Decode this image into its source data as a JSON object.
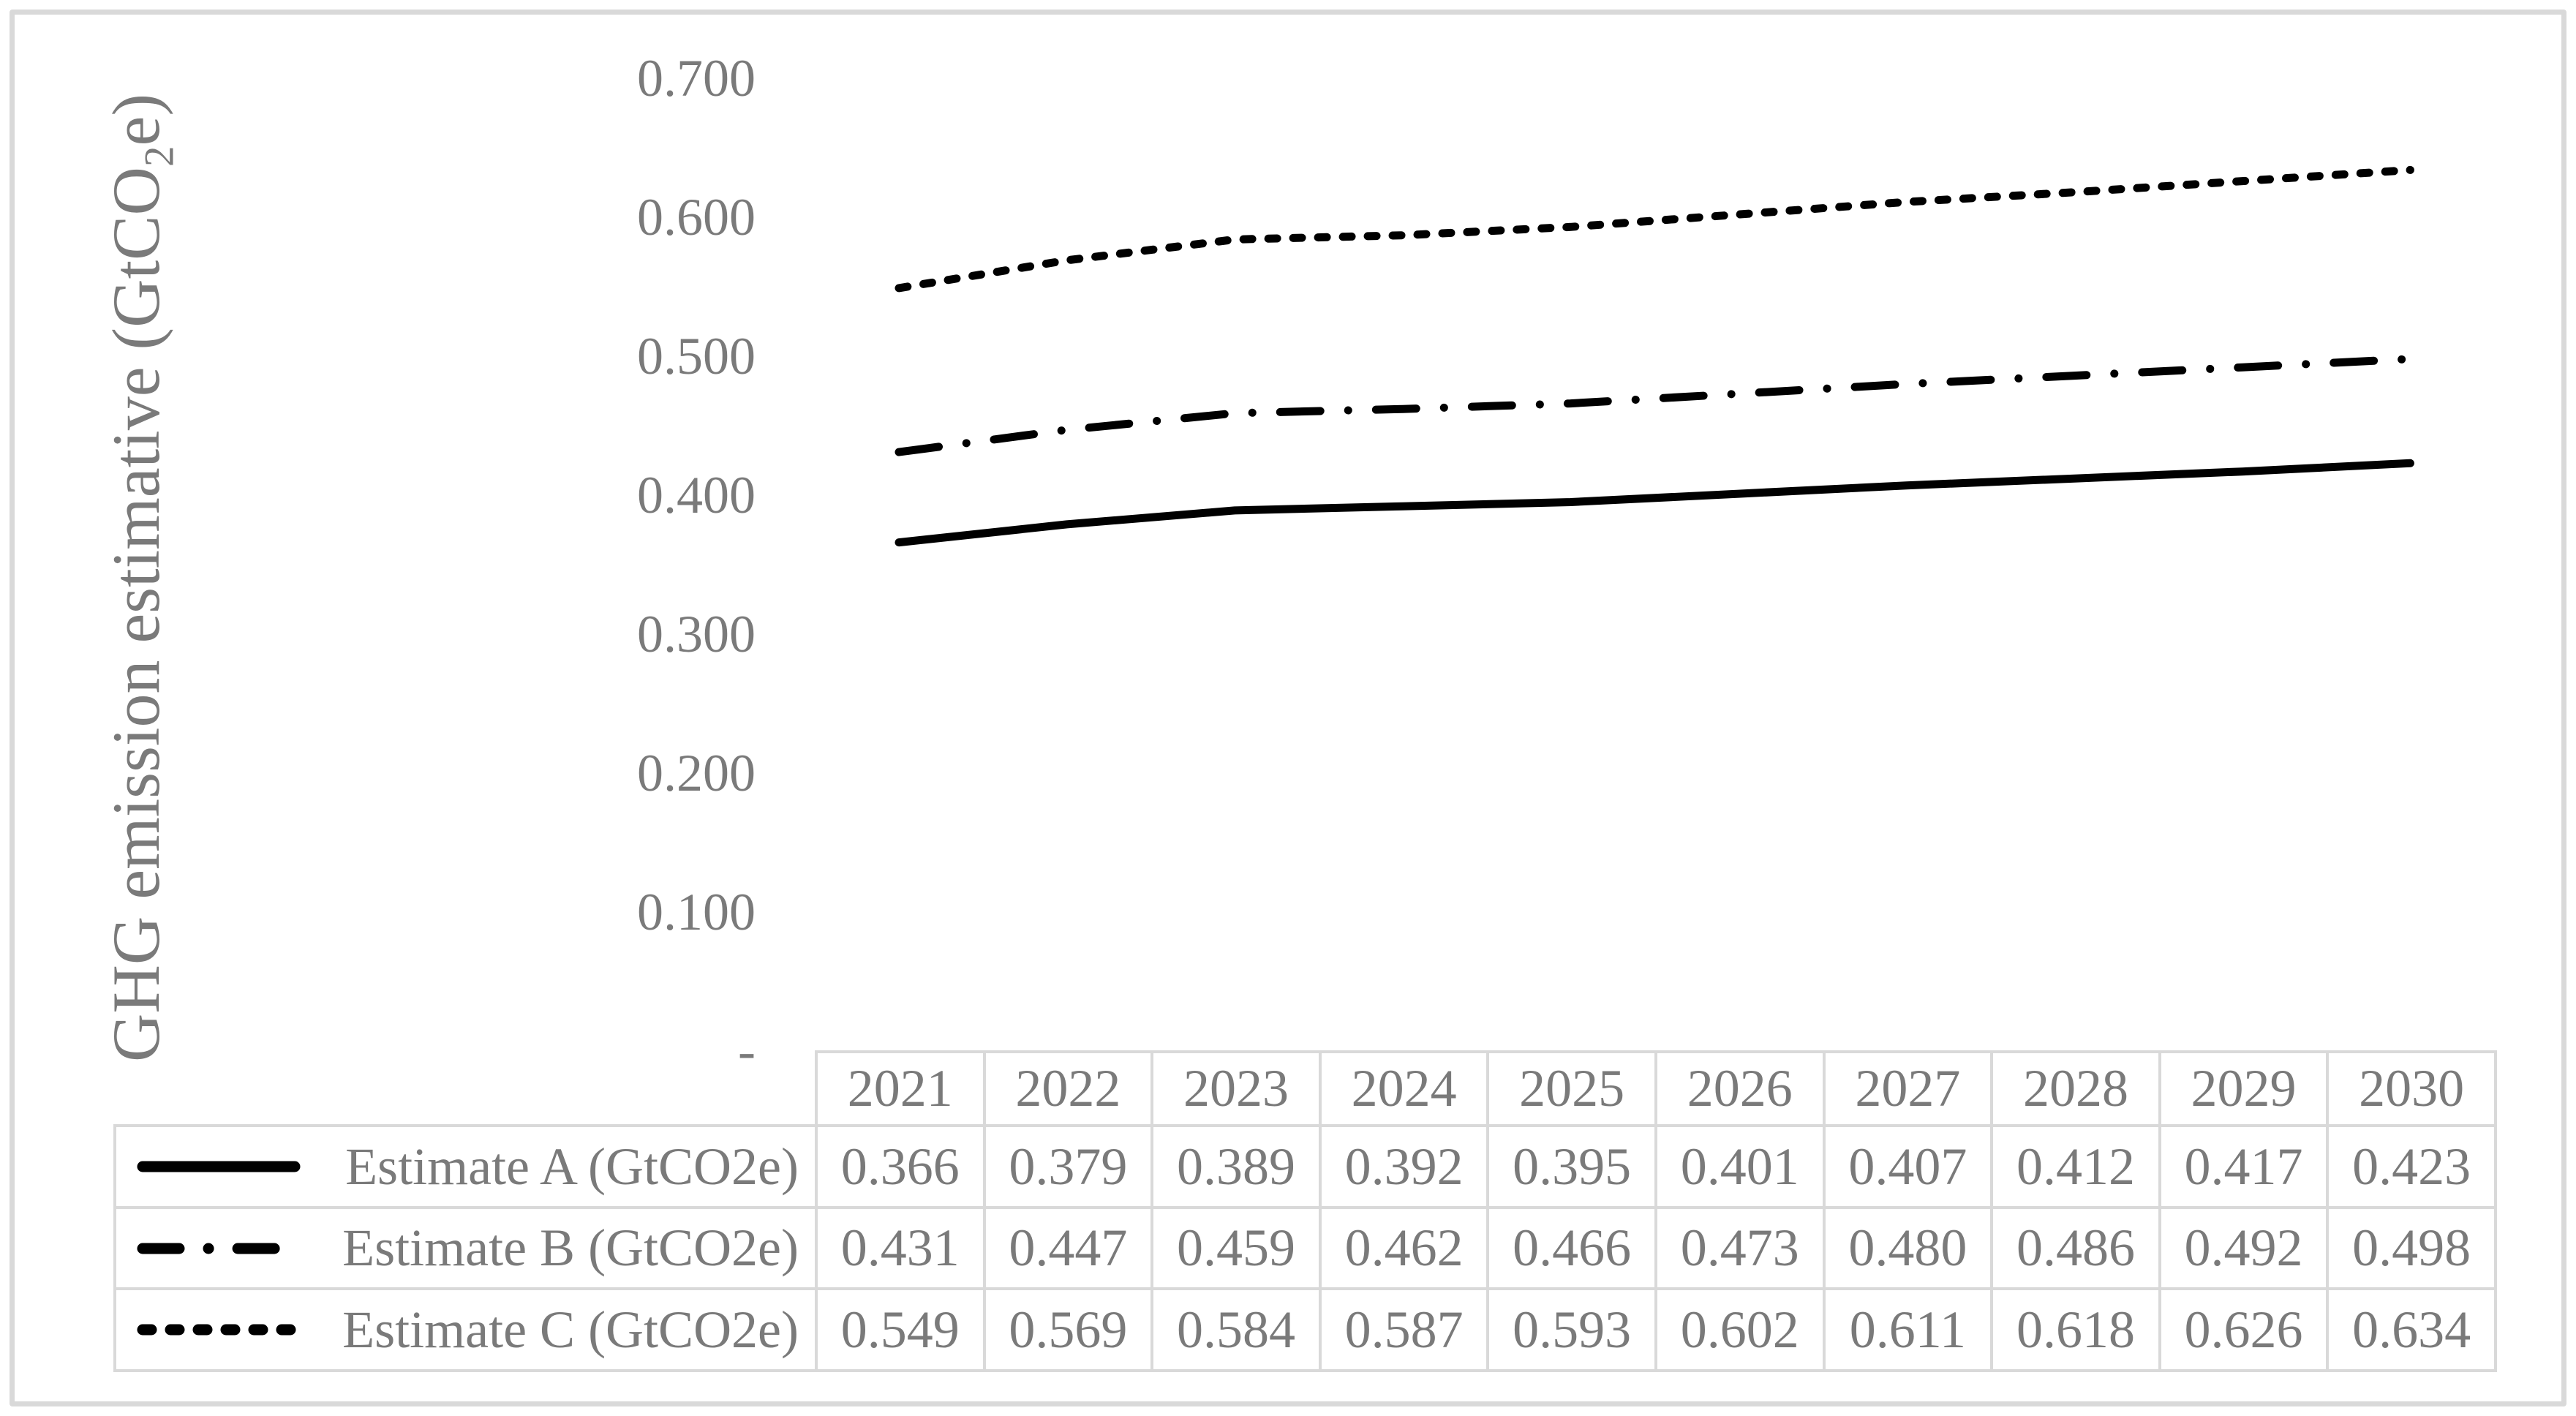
{
  "figure": {
    "background": "#ffffff",
    "frame_border_color": "#d9d9d9",
    "text_color": "#7a7a7a",
    "grid_color": "#d9d9d9",
    "line_color": "#000000"
  },
  "y_axis": {
    "title_prefix": "GHG emission estimative (GtCO",
    "title_subscript": "2",
    "title_suffix": "e)"
  },
  "chart_data": {
    "type": "line",
    "title": "",
    "xlabel": "",
    "ylabel": "GHG emission estimative (GtCO2e)",
    "ylim": [
      0,
      0.7
    ],
    "grid": false,
    "legend_position": "data-table-left",
    "data_table_shown": true,
    "categories": [
      "2021",
      "2022",
      "2023",
      "2024",
      "2025",
      "2026",
      "2027",
      "2028",
      "2029",
      "2030"
    ],
    "series": [
      {
        "name": "Estimate A (GtCO2e)",
        "line_style": "solid",
        "color": "#000000",
        "values": [
          0.366,
          0.379,
          0.389,
          0.392,
          0.395,
          0.401,
          0.407,
          0.412,
          0.417,
          0.423
        ]
      },
      {
        "name": "Estimate B (GtCO2e)",
        "line_style": "dash-dot",
        "color": "#000000",
        "values": [
          0.431,
          0.447,
          0.459,
          0.462,
          0.466,
          0.473,
          0.48,
          0.486,
          0.492,
          0.498
        ]
      },
      {
        "name": "Estimate C (GtCO2e)",
        "line_style": "dashed",
        "color": "#000000",
        "values": [
          0.549,
          0.569,
          0.584,
          0.587,
          0.593,
          0.602,
          0.611,
          0.618,
          0.626,
          0.634
        ]
      }
    ],
    "y_ticks": [
      {
        "label": "0.700",
        "value": 0.7
      },
      {
        "label": "0.600",
        "value": 0.6
      },
      {
        "label": "0.500",
        "value": 0.5
      },
      {
        "label": "0.400",
        "value": 0.4
      },
      {
        "label": "0.300",
        "value": 0.3
      },
      {
        "label": "0.200",
        "value": 0.2
      },
      {
        "label": "0.100",
        "value": 0.1
      },
      {
        "label": "-",
        "value": 0
      }
    ],
    "value_decimals": 3
  }
}
